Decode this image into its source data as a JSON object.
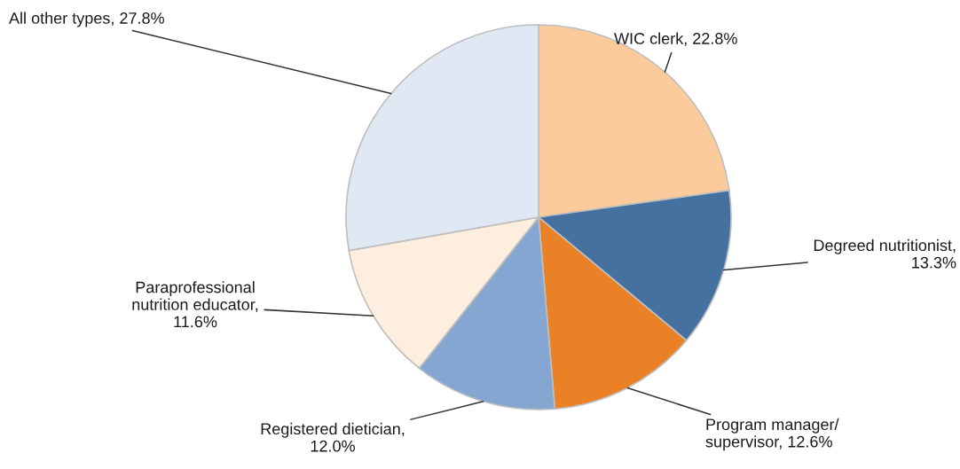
{
  "chart_data": {
    "type": "pie",
    "categories": [
      "WIC clerk, 22.8%",
      "Degreed nutritionist,\n13.3%",
      "Program manager/\nsupervisor, 12.6%",
      "Registered dietician,\n12.0%",
      "Paraprofessional\nnutrition educator,\n11.6%",
      "All other types, 27.8%"
    ],
    "values": [
      22.8,
      13.3,
      12.6,
      12.0,
      11.6,
      27.8
    ],
    "colors": [
      "#fbcb9b",
      "#44719f",
      "#ea8126",
      "#84a6d0",
      "#fdeee0",
      "#dfe8f3"
    ]
  }
}
